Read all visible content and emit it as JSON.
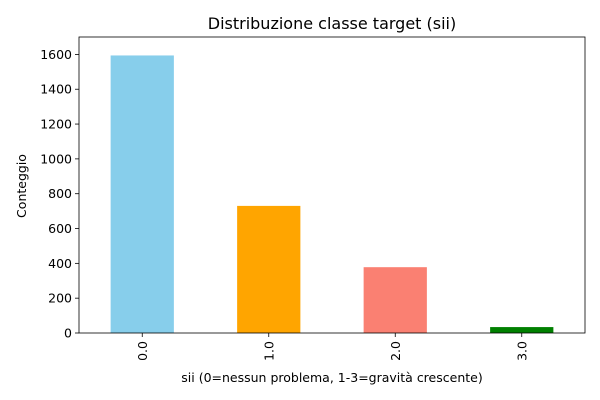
{
  "chart_data": {
    "type": "bar",
    "title": "Distribuzione classe target (sii)",
    "xlabel": "sii (0=nessun problema, 1-3=gravità crescente)",
    "ylabel": "Conteggio",
    "categories": [
      "0.0",
      "1.0",
      "2.0",
      "3.0"
    ],
    "values": [
      1594,
      730,
      378,
      34
    ],
    "colors": [
      "#87ceeb",
      "#ffa500",
      "#fa8072",
      "#008000"
    ],
    "ylim": [
      0,
      1700
    ],
    "yticks": [
      0,
      200,
      400,
      600,
      800,
      1000,
      1200,
      1400,
      1600
    ],
    "grid": false,
    "legend": "none"
  }
}
